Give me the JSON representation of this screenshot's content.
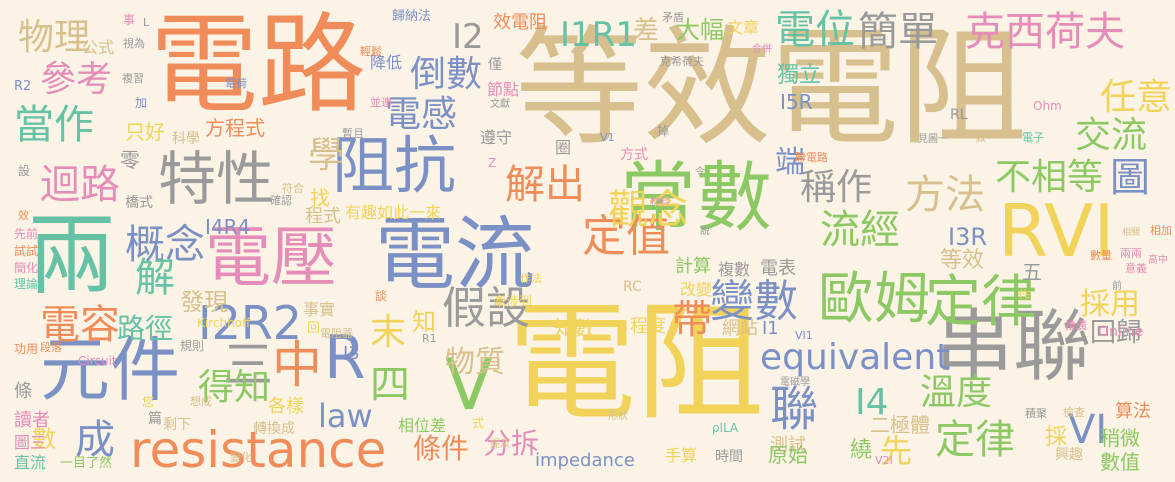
{
  "palette": {
    "background": "#fbf3e6",
    "blue": "#7b90c4",
    "green": "#8cc863",
    "yellow": "#f2d35a",
    "tan": "#d8c08e",
    "orange": "#ef8c5a",
    "gray": "#9a9a9a",
    "pink": "#e58db8",
    "teal": "#66c2a5"
  },
  "words": [
    {
      "text": "等效電阻",
      "color": "tan"
    },
    {
      "text": "電路",
      "color": "orange"
    },
    {
      "text": "電阻",
      "color": "yellow"
    },
    {
      "text": "常數",
      "color": "green"
    },
    {
      "text": "兩",
      "color": "teal"
    },
    {
      "text": "電流",
      "color": "blue"
    },
    {
      "text": "電壓",
      "color": "pink"
    },
    {
      "text": "串聯",
      "color": "gray"
    },
    {
      "text": "元件",
      "color": "blue"
    },
    {
      "text": "特性",
      "color": "gray"
    },
    {
      "text": "阻抗",
      "color": "blue"
    },
    {
      "text": "RVI",
      "color": "yellow"
    },
    {
      "text": "resistance",
      "color": "orange"
    },
    {
      "text": "歐姆",
      "color": "green"
    },
    {
      "text": "定律",
      "color": "green"
    },
    {
      "text": "定值",
      "color": "orange"
    },
    {
      "text": "電位",
      "color": "teal"
    },
    {
      "text": "簡單",
      "color": "gray"
    },
    {
      "text": "克西荷夫",
      "color": "pink"
    },
    {
      "text": "I1R1",
      "color": "teal"
    },
    {
      "text": "equivalent",
      "color": "blue"
    },
    {
      "text": "觀念",
      "color": "yellow"
    },
    {
      "text": "變數",
      "color": "blue"
    },
    {
      "text": "假設",
      "color": "gray"
    },
    {
      "text": "I2R2",
      "color": "blue"
    },
    {
      "text": "流經",
      "color": "green"
    },
    {
      "text": "電容",
      "color": "orange"
    },
    {
      "text": "當作",
      "color": "teal"
    },
    {
      "text": "概念",
      "color": "blue"
    },
    {
      "text": "迴路",
      "color": "pink"
    },
    {
      "text": "物理",
      "color": "tan"
    },
    {
      "text": "參考",
      "color": "pink"
    },
    {
      "text": "電感",
      "color": "blue"
    },
    {
      "text": "解出",
      "color": "orange"
    },
    {
      "text": "倒數",
      "color": "blue"
    },
    {
      "text": "方法",
      "color": "tan"
    },
    {
      "text": "稱作",
      "color": "gray"
    },
    {
      "text": "不相等",
      "color": "green"
    },
    {
      "text": "圖",
      "color": "blue"
    },
    {
      "text": "交流",
      "color": "green"
    },
    {
      "text": "任意",
      "color": "yellow"
    },
    {
      "text": "I2",
      "color": "gray"
    },
    {
      "text": "學",
      "color": "tan"
    },
    {
      "text": "三",
      "color": "gray"
    },
    {
      "text": "中",
      "color": "orange"
    },
    {
      "text": "R",
      "color": "blue"
    },
    {
      "text": "四",
      "color": "green"
    },
    {
      "text": "V",
      "color": "green"
    },
    {
      "text": "末",
      "color": "yellow"
    },
    {
      "text": "知",
      "color": "yellow"
    },
    {
      "text": "帶",
      "color": "orange"
    },
    {
      "text": "聯",
      "color": "blue"
    },
    {
      "text": "law",
      "color": "blue"
    },
    {
      "text": "成",
      "color": "blue"
    },
    {
      "text": "解",
      "color": "teal"
    },
    {
      "text": "得知",
      "color": "green"
    },
    {
      "text": "物質",
      "color": "tan"
    },
    {
      "text": "溫度",
      "color": "green"
    },
    {
      "text": "定律",
      "color": "green"
    },
    {
      "text": "VI",
      "color": "blue"
    },
    {
      "text": "I4",
      "color": "teal"
    },
    {
      "text": "路徑",
      "color": "teal"
    },
    {
      "text": "條件",
      "color": "orange"
    },
    {
      "text": "分拆",
      "color": "pink"
    },
    {
      "text": "先",
      "color": "yellow"
    },
    {
      "text": "採用",
      "color": "yellow"
    },
    {
      "text": "回歸",
      "color": "gray"
    },
    {
      "text": "端",
      "color": "blue"
    },
    {
      "text": "大幅",
      "color": "green"
    },
    {
      "text": "文章",
      "color": "yellow"
    },
    {
      "text": "差",
      "color": "tan"
    },
    {
      "text": "效電阻",
      "color": "orange"
    },
    {
      "text": "獨立",
      "color": "teal"
    },
    {
      "text": "I5R",
      "color": "blue"
    },
    {
      "text": "I4R4",
      "color": "blue"
    },
    {
      "text": "I3R",
      "color": "blue"
    },
    {
      "text": "I3",
      "color": "blue"
    },
    {
      "text": "發現",
      "color": "tan"
    },
    {
      "text": "方程式",
      "color": "orange"
    },
    {
      "text": "只好",
      "color": "yellow"
    },
    {
      "text": "零",
      "color": "gray"
    },
    {
      "text": "科學",
      "color": "tan"
    },
    {
      "text": "找",
      "color": "yellow"
    },
    {
      "text": "程式",
      "color": "tan"
    },
    {
      "text": "有趣",
      "color": "yellow"
    },
    {
      "text": "如此一來",
      "color": "yellow"
    },
    {
      "text": "計算",
      "color": "green"
    },
    {
      "text": "複數",
      "color": "gray"
    },
    {
      "text": "電表",
      "color": "gray"
    },
    {
      "text": "等效",
      "color": "tan"
    },
    {
      "text": "五",
      "color": "gray"
    },
    {
      "text": "知數",
      "color": "yellow"
    },
    {
      "text": "程度",
      "color": "yellow"
    },
    {
      "text": "網站",
      "color": "tan"
    },
    {
      "text": "I1",
      "color": "blue"
    },
    {
      "text": "改變",
      "color": "yellow"
    },
    {
      "text": "事實",
      "color": "tan"
    },
    {
      "text": "測試",
      "color": "tan"
    },
    {
      "text": "二極體",
      "color": "tan"
    },
    {
      "text": "原始",
      "color": "green"
    },
    {
      "text": "繞",
      "color": "green"
    },
    {
      "text": "採",
      "color": "yellow"
    },
    {
      "text": "稍微",
      "color": "green"
    },
    {
      "text": "數值",
      "color": "green"
    },
    {
      "text": "算法",
      "color": "orange"
    },
    {
      "text": "興趣",
      "color": "tan"
    },
    {
      "text": "手算",
      "color": "yellow"
    },
    {
      "text": "時間",
      "color": "gray"
    },
    {
      "text": "impedance",
      "color": "blue"
    },
    {
      "text": "相位差",
      "color": "green"
    },
    {
      "text": "各樣",
      "color": "yellow"
    },
    {
      "text": "轉換成",
      "color": "tan"
    },
    {
      "text": "剩下",
      "color": "tan"
    },
    {
      "text": "篇",
      "color": "gray"
    },
    {
      "text": "數",
      "color": "yellow"
    },
    {
      "text": "條",
      "color": "gray"
    },
    {
      "text": "讀者",
      "color": "pink"
    },
    {
      "text": "圖三",
      "color": "pink"
    },
    {
      "text": "直流",
      "color": "teal"
    },
    {
      "text": "一目了然",
      "color": "green"
    },
    {
      "text": "您",
      "color": "yellow"
    },
    {
      "text": "規則",
      "color": "gray"
    },
    {
      "text": "功用",
      "color": "orange"
    },
    {
      "text": "Circuit",
      "color": "pink"
    },
    {
      "text": "段落",
      "color": "orange"
    },
    {
      "text": "Kirchhoff",
      "color": "yellow"
    },
    {
      "text": "理論",
      "color": "teal"
    },
    {
      "text": "簡化",
      "color": "pink"
    },
    {
      "text": "試試",
      "color": "orange"
    },
    {
      "text": "先前",
      "color": "pink"
    },
    {
      "text": "橋式",
      "color": "gray"
    },
    {
      "text": "公式",
      "color": "tan"
    },
    {
      "text": "事",
      "color": "pink"
    },
    {
      "text": "加",
      "color": "blue"
    },
    {
      "text": "降低",
      "color": "blue"
    },
    {
      "text": "歸納法",
      "color": "blue"
    },
    {
      "text": "輕鬆",
      "color": "orange"
    },
    {
      "text": "僅",
      "color": "gray"
    },
    {
      "text": "節點",
      "color": "pink"
    },
    {
      "text": "遵守",
      "color": "gray"
    },
    {
      "text": "並連",
      "color": "pink"
    },
    {
      "text": "暫且",
      "color": "gray"
    },
    {
      "text": "符合",
      "color": "tan"
    },
    {
      "text": "確認",
      "color": "gray"
    },
    {
      "text": "圈",
      "color": "gray"
    },
    {
      "text": "方式",
      "color": "pink"
    },
    {
      "text": "掉",
      "color": "gray"
    },
    {
      "text": "電子",
      "color": "teal"
    },
    {
      "text": "Ohm",
      "color": "pink"
    },
    {
      "text": "Online",
      "color": "pink"
    },
    {
      "text": "推廣",
      "color": "pink"
    },
    {
      "text": "RL",
      "color": "gray"
    },
    {
      "text": "RC",
      "color": "tan"
    },
    {
      "text": "作法",
      "color": "yellow"
    },
    {
      "text": "牽涉到",
      "color": "yellow"
    },
    {
      "text": "談",
      "color": "orange"
    },
    {
      "text": "相加",
      "color": "orange"
    },
    {
      "text": "兩兩",
      "color": "pink"
    },
    {
      "text": "高中",
      "color": "pink"
    },
    {
      "text": "意義",
      "color": "pink"
    },
    {
      "text": "數量",
      "color": "orange"
    },
    {
      "text": "相關",
      "color": "tan"
    },
    {
      "text": "積聚",
      "color": "gray"
    },
    {
      "text": "檢查",
      "color": "tan"
    },
    {
      "text": "電磁學",
      "color": "gray"
    },
    {
      "text": "ρlLA",
      "color": "teal"
    },
    {
      "text": "矛盾",
      "color": "gray"
    },
    {
      "text": "克希荷夫",
      "color": "gray"
    },
    {
      "text": "合併",
      "color": "pink"
    },
    {
      "text": "文獻",
      "color": "gray"
    },
    {
      "text": "視為",
      "color": "gray"
    },
    {
      "text": "複習",
      "color": "gray"
    },
    {
      "text": "材料",
      "color": "pink"
    },
    {
      "text": "聯電路",
      "color": "orange"
    },
    {
      "text": "電荷",
      "color": "blue"
    },
    {
      "text": "R2",
      "color": "blue"
    },
    {
      "text": "形狀",
      "color": "tan"
    },
    {
      "text": "提及",
      "color": "tan"
    },
    {
      "text": "想成",
      "color": "tan"
    },
    {
      "text": "變化",
      "color": "tan"
    },
    {
      "text": "V1",
      "color": "blue"
    },
    {
      "text": "V2I",
      "color": "pink"
    },
    {
      "text": "VI1",
      "color": "blue"
    },
    {
      "text": "R1",
      "color": "gray"
    },
    {
      "text": "電阻器",
      "color": "tan"
    },
    {
      "text": "回",
      "color": "yellow"
    },
    {
      "text": "式",
      "color": "yellow"
    },
    {
      "text": "令",
      "color": "gray"
    },
    {
      "text": "說",
      "color": "gray"
    },
    {
      "text": "見圖一",
      "color": "gray"
    },
    {
      "text": "做",
      "color": "tan"
    },
    {
      "text": "作",
      "color": "yellow"
    },
    {
      "text": "Z",
      "color": "pink"
    },
    {
      "text": "L",
      "color": "gray"
    },
    {
      "text": "設",
      "color": "gray"
    },
    {
      "text": "效",
      "color": "orange"
    },
    {
      "text": "前",
      "color": "gray"
    }
  ]
}
